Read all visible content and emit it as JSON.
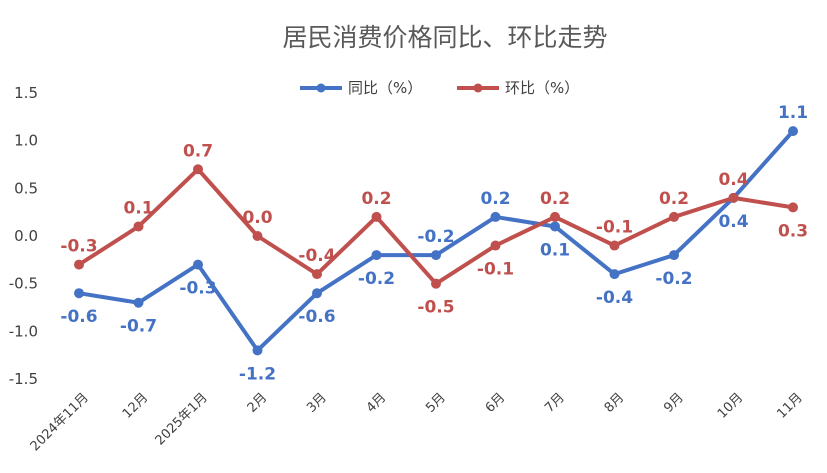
{
  "chart_data": {
    "type": "line",
    "title": "居民消费价格同比、环比走势",
    "categories": [
      "2024年11月",
      "12月",
      "2025年1月",
      "2月",
      "3月",
      "4月",
      "5月",
      "6月",
      "7月",
      "8月",
      "9月",
      "10月",
      "11月"
    ],
    "series": [
      {
        "name": "同比（%）",
        "color": "#4472C4",
        "values": [
          -0.6,
          -0.7,
          -0.3,
          -1.2,
          -0.6,
          -0.2,
          -0.2,
          0.2,
          0.1,
          -0.4,
          -0.2,
          0.4,
          1.1
        ],
        "labels": [
          "-0.6",
          "-0.7",
          "-0.3",
          "-1.2",
          "-0.6",
          "-0.2",
          "-0.2",
          "0.2",
          "0.1",
          "-0.4",
          "-0.2",
          "0.4",
          "1.1"
        ]
      },
      {
        "name": "环比（%）",
        "color": "#C0504D",
        "values": [
          -0.3,
          0.1,
          0.7,
          0.0,
          -0.4,
          0.2,
          -0.5,
          -0.1,
          0.2,
          -0.1,
          0.2,
          0.4,
          0.3
        ],
        "labels": [
          "-0.3",
          "0.1",
          "0.7",
          "0.0",
          "-0.4",
          "0.2",
          "-0.5",
          "-0.1",
          "0.2",
          "-0.1",
          "0.2",
          "0.4",
          "0.3"
        ]
      }
    ],
    "yticks": [
      "1.5",
      "1.0",
      "0.5",
      "0.0",
      "-0.5",
      "-1.0",
      "-1.5"
    ],
    "ylim": [
      -1.5,
      1.5
    ],
    "grid": false,
    "legend": "top-center",
    "xlabel": "",
    "ylabel": ""
  }
}
